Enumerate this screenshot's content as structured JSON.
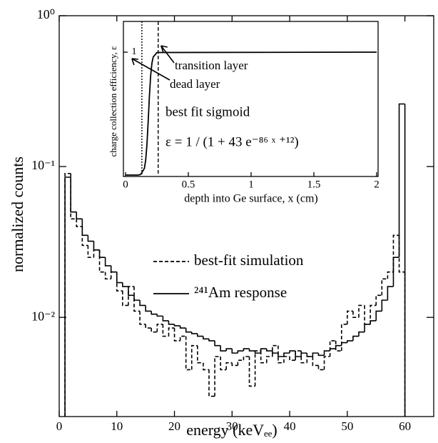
{
  "chart_data": [
    {
      "type": "histogram",
      "xlabel": "energy (keVₑₑ)",
      "ylabel": "normalized counts",
      "bins": [
        1,
        2,
        3,
        4,
        5,
        6,
        7,
        8,
        9,
        10,
        11,
        12,
        13,
        14,
        15,
        16,
        17,
        18,
        19,
        20,
        21,
        22,
        23,
        24,
        25,
        26,
        27,
        28,
        29,
        30,
        31,
        32,
        33,
        34,
        35,
        36,
        37,
        38,
        39,
        40,
        41,
        42,
        43,
        44,
        45,
        46,
        47,
        48,
        49,
        50,
        51,
        52,
        53,
        54,
        55,
        56,
        57,
        58,
        59,
        60
      ],
      "series": [
        {
          "name": "best-fit simulation",
          "color": "#000000",
          "line_style": "dashed",
          "values": [
            0.09,
            0.045,
            0.04,
            0.03,
            0.025,
            0.028,
            0.02,
            0.018,
            0.02,
            0.015,
            0.012,
            0.016,
            0.011,
            0.009,
            0.0085,
            0.008,
            0.009,
            0.0075,
            0.0085,
            0.007,
            0.0075,
            0.0045,
            0.0065,
            0.005,
            0.0045,
            0.003,
            0.0055,
            0.0045,
            0.005,
            0.0048,
            0.0052,
            0.0055,
            0.0035,
            0.006,
            0.005,
            0.0055,
            0.0065,
            0.005,
            0.0055,
            0.0052,
            0.006,
            0.005,
            0.0055,
            0.0048,
            0.0045,
            0.0055,
            0.007,
            0.006,
            0.009,
            0.011,
            0.01,
            0.012,
            0.009,
            0.012,
            0.014,
            0.018,
            0.02,
            0.035,
            0.02
          ]
        },
        {
          "name": "²⁴¹Am response",
          "color": "#000000",
          "line_style": "solid",
          "values": [
            0.085,
            0.05,
            0.045,
            0.035,
            0.032,
            0.028,
            0.025,
            0.022,
            0.02,
            0.017,
            0.016,
            0.014,
            0.013,
            0.012,
            0.011,
            0.0105,
            0.0102,
            0.0095,
            0.009,
            0.0088,
            0.0085,
            0.008,
            0.0078,
            0.0075,
            0.0072,
            0.007,
            0.0065,
            0.006,
            0.0062,
            0.0058,
            0.006,
            0.0062,
            0.006,
            0.0058,
            0.0062,
            0.006,
            0.0058,
            0.0055,
            0.0058,
            0.006,
            0.0055,
            0.0058,
            0.0055,
            0.0058,
            0.0056,
            0.006,
            0.0062,
            0.0065,
            0.0068,
            0.007,
            0.0075,
            0.008,
            0.009,
            0.0095,
            0.011,
            0.013,
            0.016,
            0.025,
            0.26
          ]
        }
      ],
      "xlim": [
        0,
        65
      ],
      "xticks": [
        0,
        10,
        20,
        30,
        40,
        50,
        60
      ],
      "ylim": [
        0.0022,
        1
      ],
      "log_y": true,
      "yticks": [
        {
          "value": 1,
          "label": "10⁰"
        },
        {
          "value": 0.1,
          "label": "10⁻¹"
        },
        {
          "value": 0.01,
          "label": "10⁻²"
        }
      ]
    },
    {
      "type": "line",
      "xlabel": "depth into Ge surface, x (cm)",
      "ylabel": "charge collection efficiency, ε",
      "annotations": [
        "best fit sigmoid",
        "ε = 1 / (1 + 43 e⁻⁸⁶ ˣ ⁺¹²)"
      ],
      "x": [
        0,
        0.1,
        0.12,
        0.15,
        0.16,
        0.17,
        0.18,
        0.19,
        0.2,
        0.21,
        0.22,
        0.25,
        2
      ],
      "values": [
        0,
        0,
        0.0043,
        0.054,
        0.119,
        0.242,
        0.43,
        0.641,
        0.81,
        0.909,
        0.96,
        0.997,
        1
      ],
      "color": "#000000",
      "markers": [
        {
          "label": "dead layer",
          "x": 0.13,
          "line_style": "dotted"
        },
        {
          "label": "transition layer",
          "x": 0.26,
          "line_style": "dashed"
        }
      ],
      "xlim": [
        0,
        2
      ],
      "xticks": [
        0,
        0.5,
        1,
        1.5,
        2
      ],
      "ylim": [
        0,
        1.25
      ],
      "yticks": [
        1
      ]
    }
  ]
}
